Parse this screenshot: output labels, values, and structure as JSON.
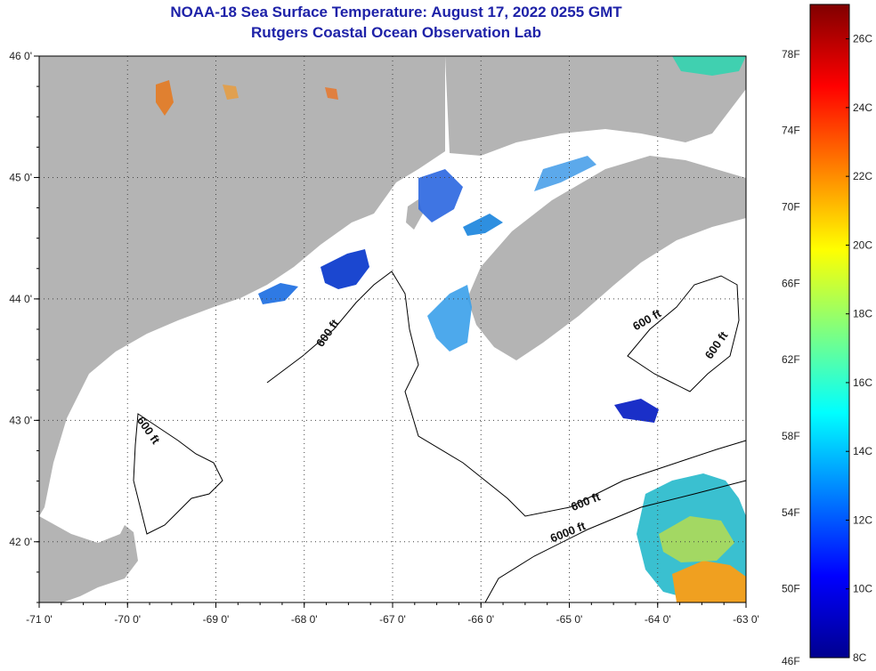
{
  "title": {
    "line1": "NOAA-18 Sea Surface Temperature:  August 17, 2022 0255 GMT",
    "line2": "Rutgers Coastal Ocean Observation Lab"
  },
  "map": {
    "lon_range": [
      -71,
      -63
    ],
    "lat_range": [
      41.5,
      46
    ],
    "lon_ticks": [
      {
        "lon": -71,
        "label": "-71 0'"
      },
      {
        "lon": -70,
        "label": "-70 0'"
      },
      {
        "lon": -69,
        "label": "-69 0'"
      },
      {
        "lon": -68,
        "label": "-68 0'"
      },
      {
        "lon": -67,
        "label": "-67 0'"
      },
      {
        "lon": -66,
        "label": "-66 0'"
      },
      {
        "lon": -65,
        "label": "-65 0'"
      },
      {
        "lon": -64,
        "label": "-64 0'"
      },
      {
        "lon": -63,
        "label": "-63 0'"
      }
    ],
    "lat_ticks": [
      {
        "lat": 46,
        "label": "46 0'"
      },
      {
        "lat": 45,
        "label": "45 0'"
      },
      {
        "lat": 44,
        "label": "44 0'"
      },
      {
        "lat": 43,
        "label": "43 0'"
      },
      {
        "lat": 42,
        "label": "42 0'"
      }
    ],
    "grid": "dotted",
    "colors": {
      "land": "#b4b4b4",
      "ocean": "#ffffff",
      "contour": "#000000"
    },
    "contour_labels": [
      {
        "text": "600 ft",
        "lon": -67.7,
        "lat": 43.7,
        "angle": -55
      },
      {
        "text": "600 ft",
        "lon": -69.8,
        "lat": 42.9,
        "angle": 55
      },
      {
        "text": "600 ft",
        "lon": -64.1,
        "lat": 43.8,
        "angle": -30
      },
      {
        "text": "600 ft",
        "lon": -63.3,
        "lat": 43.6,
        "angle": -55
      },
      {
        "text": "600 ft",
        "lon": -64.8,
        "lat": 42.3,
        "angle": -22
      },
      {
        "text": "6000 ft",
        "lon": -65.0,
        "lat": 42.05,
        "angle": -22
      }
    ]
  },
  "colorbar": {
    "fahrenheit_labels": [
      "78F",
      "74F",
      "70F",
      "66F",
      "62F",
      "58F",
      "54F",
      "50F",
      "46F"
    ],
    "celsius_labels": [
      "26C",
      "24C",
      "22C",
      "20C",
      "18C",
      "16C",
      "14C",
      "12C",
      "10C",
      "8C"
    ],
    "min_c": 8,
    "max_c": 27,
    "colormap": "jet"
  }
}
